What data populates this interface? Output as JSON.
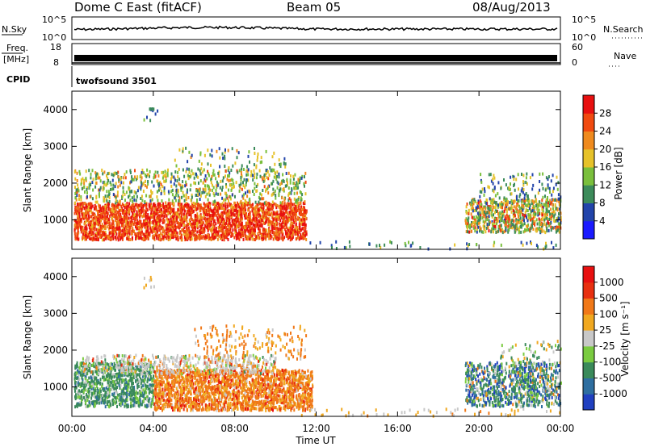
{
  "header": {
    "station": "Dome C East (fitACF)",
    "beam": "Beam 05",
    "date": "08/Aug/2013"
  },
  "strip_panels": {
    "nsky_label": "N.Sky",
    "nsky_ticks": [
      "10^5",
      "10^0"
    ],
    "nsearch_label": "N.Search",
    "freq_label": "Freq.",
    "freq_unit": "[MHz]",
    "freq_ticks": [
      "18",
      "8"
    ],
    "nave_label": "Nave",
    "nave_ticks": [
      "60",
      "0"
    ],
    "cpid_label": "CPID",
    "cpid_value": "twofsound 3501"
  },
  "chart_data": [
    {
      "type": "heatmap",
      "panel": "power",
      "ylabel": "Slant Range [km]",
      "colorbar_label": "Power [dB]",
      "yticks": [
        "1000",
        "2000",
        "3000",
        "4000"
      ],
      "ylim": [
        200,
        4500
      ],
      "colorbar_ticks": [
        "28",
        "24",
        "20",
        "16",
        "12",
        "8",
        "4"
      ],
      "colors": [
        "#1a1aff",
        "#2244aa",
        "#3c8b5a",
        "#7abf3c",
        "#e6c22a",
        "#ef8a1e",
        "#f04a10",
        "#e81010"
      ]
    },
    {
      "type": "heatmap",
      "panel": "velocity",
      "ylabel": "Slant Range [km]",
      "colorbar_label": "Velocity [m s⁻¹]",
      "yticks": [
        "1000",
        "2000",
        "3000",
        "4000"
      ],
      "ylim": [
        200,
        4500
      ],
      "colorbar_ticks": [
        "1000",
        "500",
        "100",
        "25",
        "-25",
        "-100",
        "-500",
        "-1000"
      ],
      "colors": [
        "#2040c0",
        "#2e6ea0",
        "#3a8a5a",
        "#7acb40",
        "#c8c8c8",
        "#f0a820",
        "#f07818",
        "#e83010",
        "#e81010"
      ]
    }
  ],
  "xaxis": {
    "ticks": [
      "00:00",
      "04:00",
      "08:00",
      "12:00",
      "16:00",
      "20:00",
      "00:00"
    ],
    "label": "Time UT"
  }
}
